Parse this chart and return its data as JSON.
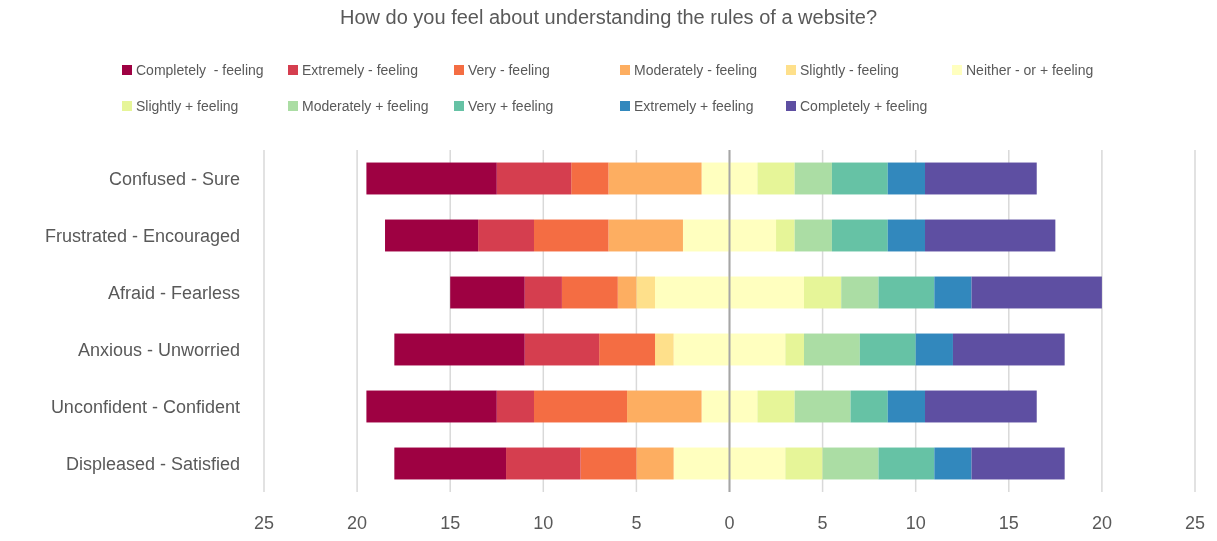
{
  "chart_data": {
    "type": "bar",
    "orientation": "horizontal",
    "stacked": true,
    "title": "How do you feel about understanding the rules of a website?",
    "categories": [
      "Confused - Sure",
      "Frustrated - Encouraged",
      "Afraid - Fearless",
      "Anxious - Unworried",
      "Unconfident - Confident",
      "Displeased - Satisfied"
    ],
    "series": [
      {
        "name": "Neither - or + feeling",
        "color": "#ffffbf",
        "values": [
          -1.5,
          -2.5,
          -4,
          -3,
          -1.5,
          -3
        ]
      },
      {
        "name": "Slightly - feeling",
        "color": "#fee08b",
        "values": [
          0,
          0,
          -1,
          -1,
          0,
          0
        ]
      },
      {
        "name": "Moderately - feeling",
        "color": "#fdae61",
        "values": [
          -5,
          -4,
          -1,
          0,
          -4,
          -2
        ]
      },
      {
        "name": "Very - feeling",
        "color": "#f46d43",
        "values": [
          -2,
          -4,
          -3,
          -3,
          -5,
          -3
        ]
      },
      {
        "name": "Extremely - feeling",
        "color": "#d53e4f",
        "values": [
          -4,
          -3,
          -2,
          -4,
          -2,
          -4
        ]
      },
      {
        "name": "Completely  - feeling",
        "color": "#9e0142",
        "values": [
          -7,
          -5,
          -4,
          -7,
          -7,
          -6
        ]
      },
      {
        "color": "#ffffbf",
        "values": [
          1.5,
          2.5,
          4,
          3,
          1.5,
          3
        ]
      },
      {
        "name": "Slightly + feeling",
        "color": "#e6f598",
        "values": [
          2,
          1,
          2,
          1,
          2,
          2
        ]
      },
      {
        "name": "Moderately + feeling",
        "color": "#abdda4",
        "values": [
          2,
          2,
          2,
          3,
          3,
          3
        ]
      },
      {
        "name": "Very + feeling",
        "color": "#66c2a5",
        "values": [
          3,
          3,
          3,
          3,
          2,
          3
        ]
      },
      {
        "name": "Extremely + feeling",
        "color": "#3288bd",
        "values": [
          2,
          2,
          2,
          2,
          2,
          2
        ]
      },
      {
        "name": "Completely + feeling",
        "color": "#5e4fa2",
        "values": [
          6,
          7,
          7,
          6,
          6,
          5
        ]
      }
    ],
    "xlim": [
      -25,
      25
    ],
    "xticks": [
      {
        "value": -25,
        "label": "25"
      },
      {
        "value": -20,
        "label": "20"
      },
      {
        "value": -15,
        "label": "15"
      },
      {
        "value": -10,
        "label": "10"
      },
      {
        "value": -5,
        "label": "5"
      },
      0,
      5,
      10,
      15,
      20,
      25
    ],
    "grid": "x",
    "legend": "top"
  }
}
